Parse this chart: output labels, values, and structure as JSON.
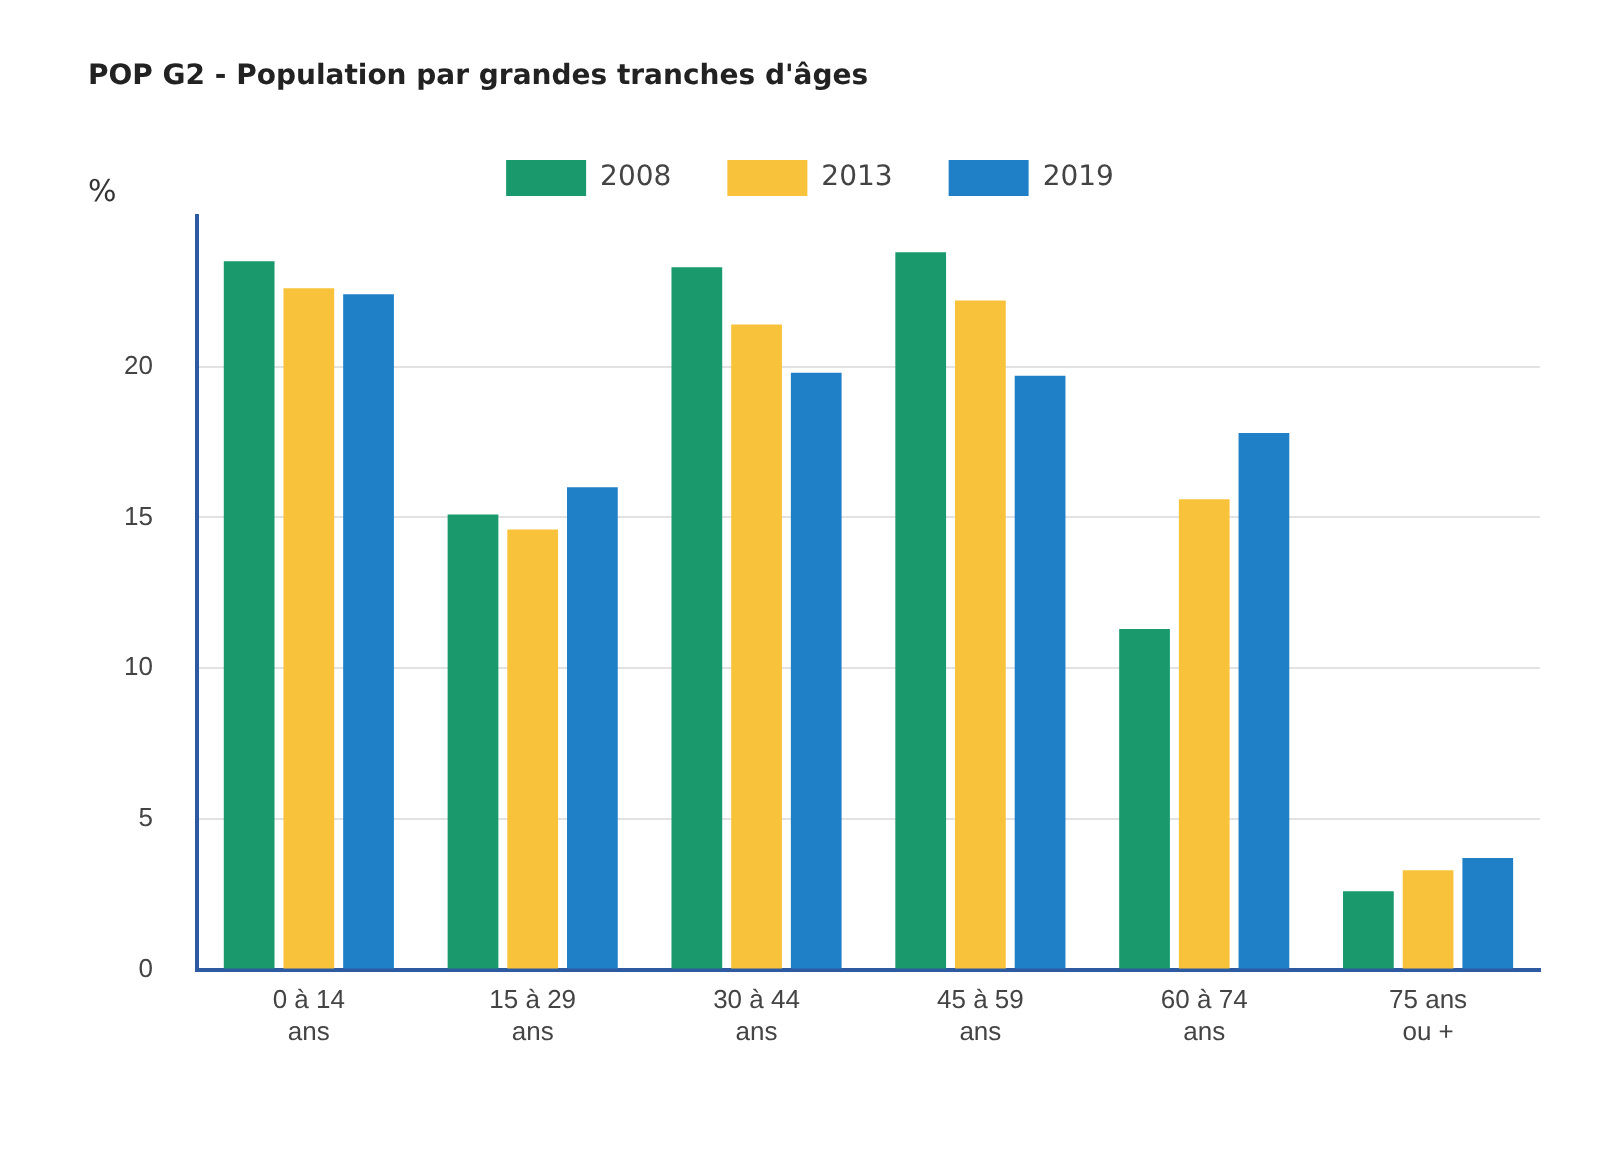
{
  "chart_data": {
    "type": "bar",
    "title": "POP G2 - Population par grandes tranches d'âges",
    "ylabel": "%",
    "categories": [
      "0 à 14 ans",
      "15 à 29 ans",
      "30 à 44 ans",
      "45 à 59 ans",
      "60 à 74 ans",
      "75 ans ou +"
    ],
    "series": [
      {
        "name": "2008",
        "color": "#1a9a6c",
        "values": [
          23.5,
          15.1,
          23.3,
          23.8,
          11.3,
          2.6
        ]
      },
      {
        "name": "2013",
        "color": "#f8c33a",
        "values": [
          22.6,
          14.6,
          21.4,
          22.2,
          15.6,
          3.3
        ]
      },
      {
        "name": "2019",
        "color": "#1f80c8",
        "values": [
          22.4,
          16.0,
          19.8,
          19.7,
          17.8,
          3.7
        ]
      }
    ],
    "ylim": [
      0,
      25
    ],
    "yticks": [
      0,
      5,
      10,
      15,
      20
    ],
    "grid": "y",
    "legend": "top"
  }
}
